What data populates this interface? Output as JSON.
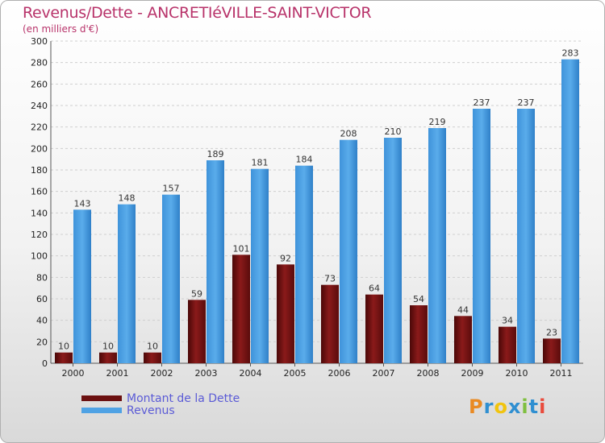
{
  "header": {
    "title": "Revenus/Dette - ANCRETIéVILLE-SAINT-VICTOR",
    "subtitle": "(en milliers d'€)"
  },
  "brand": {
    "letters": [
      "P",
      "r",
      "o",
      "x",
      "i",
      "t",
      "i"
    ],
    "colors": [
      "#e98a23",
      "#2f8fd1",
      "#f1c40f",
      "#2f8fd1",
      "#7fbf3f",
      "#2f8fd1",
      "#e94b3c"
    ]
  },
  "colors": {
    "debt": "#7b1414",
    "revenue": "#4fa2e4",
    "debt_dark": "#4a0808",
    "revenue_dark": "#2f80c8"
  },
  "chart_data": {
    "type": "bar",
    "title": "Revenus/Dette - ANCRETIéVILLE-SAINT-VICTOR",
    "ylabel": "(en milliers d'€)",
    "ylim": [
      0,
      300
    ],
    "yticks": [
      0,
      20,
      40,
      60,
      80,
      100,
      120,
      140,
      160,
      180,
      200,
      220,
      240,
      260,
      280,
      300
    ],
    "grid": true,
    "legend_position": "bottom-left",
    "categories": [
      "2000",
      "2001",
      "2002",
      "2003",
      "2004",
      "2005",
      "2006",
      "2007",
      "2008",
      "2009",
      "2010",
      "2011"
    ],
    "series": [
      {
        "name": "Montant de la Dette",
        "values": [
          10,
          10,
          10,
          59,
          101,
          92,
          73,
          64,
          54,
          44,
          34,
          23
        ]
      },
      {
        "name": "Revenus",
        "values": [
          143,
          148,
          157,
          189,
          181,
          184,
          208,
          210,
          219,
          237,
          237,
          283
        ]
      }
    ]
  }
}
